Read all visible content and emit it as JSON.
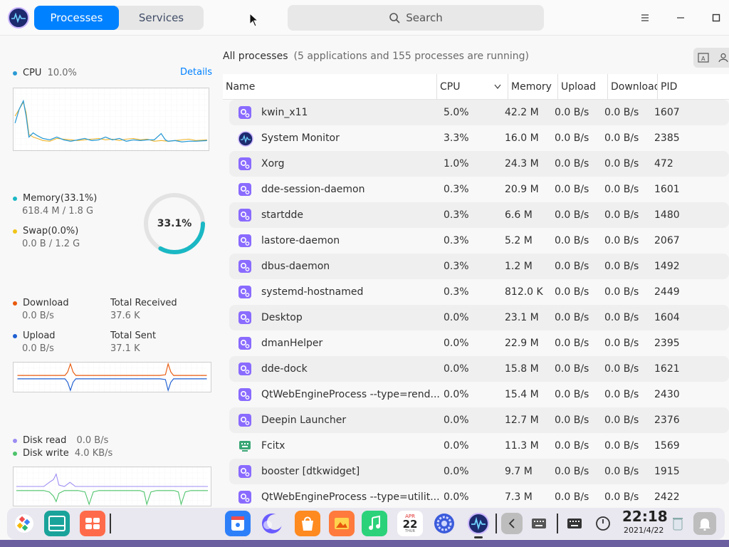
{
  "tabs": {
    "processes": "Processes",
    "services": "Services"
  },
  "search": {
    "label": "Search"
  },
  "cpu": {
    "label": "CPU",
    "value": "10.0%",
    "details": "Details"
  },
  "memory": {
    "label": "Memory(33.1%)",
    "detail": "618.4 M / 1.8 G",
    "percent_label": "33.1%",
    "percent": 33.1
  },
  "swap": {
    "label": "Swap(0.0%)",
    "detail": "0.0 B / 1.2 G"
  },
  "network": {
    "download_label": "Download",
    "download_value": "0.0 B/s",
    "total_received_label": "Total Received",
    "total_received_value": "37.6 K",
    "upload_label": "Upload",
    "upload_value": "0.0 B/s",
    "total_sent_label": "Total Sent",
    "total_sent_value": "37.1 K"
  },
  "disk": {
    "read_label": "Disk read",
    "read_value": "0.0 B/s",
    "write_label": "Disk write",
    "write_value": "4.0 KB/s"
  },
  "header": {
    "title": "All processes",
    "count": "(5 applications and 155 processes are running)"
  },
  "columns": [
    "Name",
    "CPU",
    "Memory",
    "Upload",
    "Download",
    "PID"
  ],
  "processes": [
    {
      "name": "kwin_x11",
      "cpu": "5.0%",
      "memory": "42.2 M",
      "upload": "0.0 B/s",
      "download": "0.0 B/s",
      "pid": "1607",
      "icon": "gear-icon"
    },
    {
      "name": "System Monitor",
      "cpu": "3.3%",
      "memory": "16.0 M",
      "upload": "0.0 B/s",
      "download": "0.0 B/s",
      "pid": "2385",
      "icon": "system-monitor-icon"
    },
    {
      "name": "Xorg",
      "cpu": "1.0%",
      "memory": "24.3 M",
      "upload": "0.0 B/s",
      "download": "0.0 B/s",
      "pid": "472",
      "icon": "gear-icon"
    },
    {
      "name": "dde-session-daemon",
      "cpu": "0.3%",
      "memory": "20.9 M",
      "upload": "0.0 B/s",
      "download": "0.0 B/s",
      "pid": "1601",
      "icon": "gear-icon"
    },
    {
      "name": "startdde",
      "cpu": "0.3%",
      "memory": "6.6 M",
      "upload": "0.0 B/s",
      "download": "0.0 B/s",
      "pid": "1480",
      "icon": "gear-icon"
    },
    {
      "name": "lastore-daemon",
      "cpu": "0.3%",
      "memory": "5.2 M",
      "upload": "0.0 B/s",
      "download": "0.0 B/s",
      "pid": "2067",
      "icon": "gear-icon"
    },
    {
      "name": "dbus-daemon",
      "cpu": "0.3%",
      "memory": "1.2 M",
      "upload": "0.0 B/s",
      "download": "0.0 B/s",
      "pid": "1492",
      "icon": "gear-icon"
    },
    {
      "name": "systemd-hostnamed",
      "cpu": "0.3%",
      "memory": "812.0 K",
      "upload": "0.0 B/s",
      "download": "0.0 B/s",
      "pid": "2449",
      "icon": "gear-icon"
    },
    {
      "name": "Desktop",
      "cpu": "0.0%",
      "memory": "23.1 M",
      "upload": "0.0 B/s",
      "download": "0.0 B/s",
      "pid": "1604",
      "icon": "gear-icon"
    },
    {
      "name": "dmanHelper",
      "cpu": "0.0%",
      "memory": "22.9 M",
      "upload": "0.0 B/s",
      "download": "0.0 B/s",
      "pid": "2395",
      "icon": "gear-icon"
    },
    {
      "name": "dde-dock",
      "cpu": "0.0%",
      "memory": "15.8 M",
      "upload": "0.0 B/s",
      "download": "0.0 B/s",
      "pid": "1621",
      "icon": "gear-icon"
    },
    {
      "name": "QtWebEngineProcess --type=rend...",
      "cpu": "0.0%",
      "memory": "15.4 M",
      "upload": "0.0 B/s",
      "download": "0.0 B/s",
      "pid": "2430",
      "icon": "gear-icon"
    },
    {
      "name": "Deepin Launcher",
      "cpu": "0.0%",
      "memory": "12.7 M",
      "upload": "0.0 B/s",
      "download": "0.0 B/s",
      "pid": "2376",
      "icon": "gear-icon"
    },
    {
      "name": "Fcitx",
      "cpu": "0.0%",
      "memory": "11.3 M",
      "upload": "0.0 B/s",
      "download": "0.0 B/s",
      "pid": "1569",
      "icon": "keyboard-icon"
    },
    {
      "name": "booster [dtkwidget]",
      "cpu": "0.0%",
      "memory": "9.7 M",
      "upload": "0.0 B/s",
      "download": "0.0 B/s",
      "pid": "1915",
      "icon": "gear-icon"
    },
    {
      "name": "QtWebEngineProcess --type=utilit...",
      "cpu": "0.0%",
      "memory": "7.3 M",
      "upload": "0.0 B/s",
      "download": "0.0 B/s",
      "pid": "2422",
      "icon": "gear-icon"
    }
  ],
  "dock": {
    "time": "22:18",
    "date": "2021/4/22",
    "calendar_month": "APR",
    "calendar_day": "22",
    "calendar_weekday": "THUR"
  },
  "colors": {
    "accent": "#0081ff",
    "cpu_line": "#2a9ad4",
    "cpu_line2": "#f0b429",
    "download": "#e8590c",
    "upload": "#1f5fd1",
    "disk_read": "#9b8cf2",
    "disk_write": "#4cc36a",
    "memory_ring": "#1ab8c4"
  }
}
